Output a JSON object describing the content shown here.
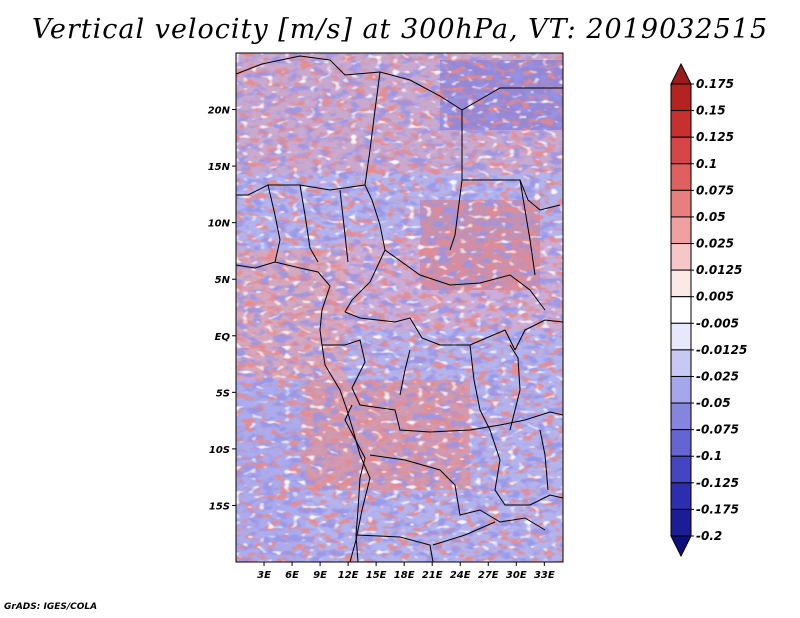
{
  "title": "Vertical velocity [m/s] at 300hPa, VT: 2019032515",
  "credit": "GrADS: IGES/COLA",
  "map": {
    "lon_ticks": [
      "3E",
      "6E",
      "9E",
      "12E",
      "15E",
      "18E",
      "21E",
      "24E",
      "27E",
      "30E",
      "33E"
    ],
    "lat_ticks": [
      "20N",
      "15N",
      "10N",
      "5N",
      "EQ",
      "5S",
      "10S",
      "15S"
    ],
    "lon_range": [
      0,
      35
    ],
    "lat_range": [
      -20,
      25
    ]
  },
  "colorbar": {
    "labels": [
      "0.175",
      "0.15",
      "0.125",
      "0.1",
      "0.075",
      "0.05",
      "0.025",
      "0.0125",
      "0.005",
      "-0.005",
      "-0.0125",
      "-0.025",
      "-0.05",
      "-0.075",
      "-0.1",
      "-0.125",
      "-0.175",
      "-0.2"
    ],
    "colors": [
      "#9b1b1b",
      "#b42222",
      "#c83030",
      "#d74646",
      "#e06060",
      "#e87e7e",
      "#f0a0a0",
      "#f7c6c6",
      "#fde8e8",
      "#ffffff",
      "#e8e8fc",
      "#c8c8f4",
      "#a6a6ec",
      "#8585e0",
      "#6464d2",
      "#4545c2",
      "#2d2daf",
      "#1c1c96",
      "#10107d"
    ]
  }
}
